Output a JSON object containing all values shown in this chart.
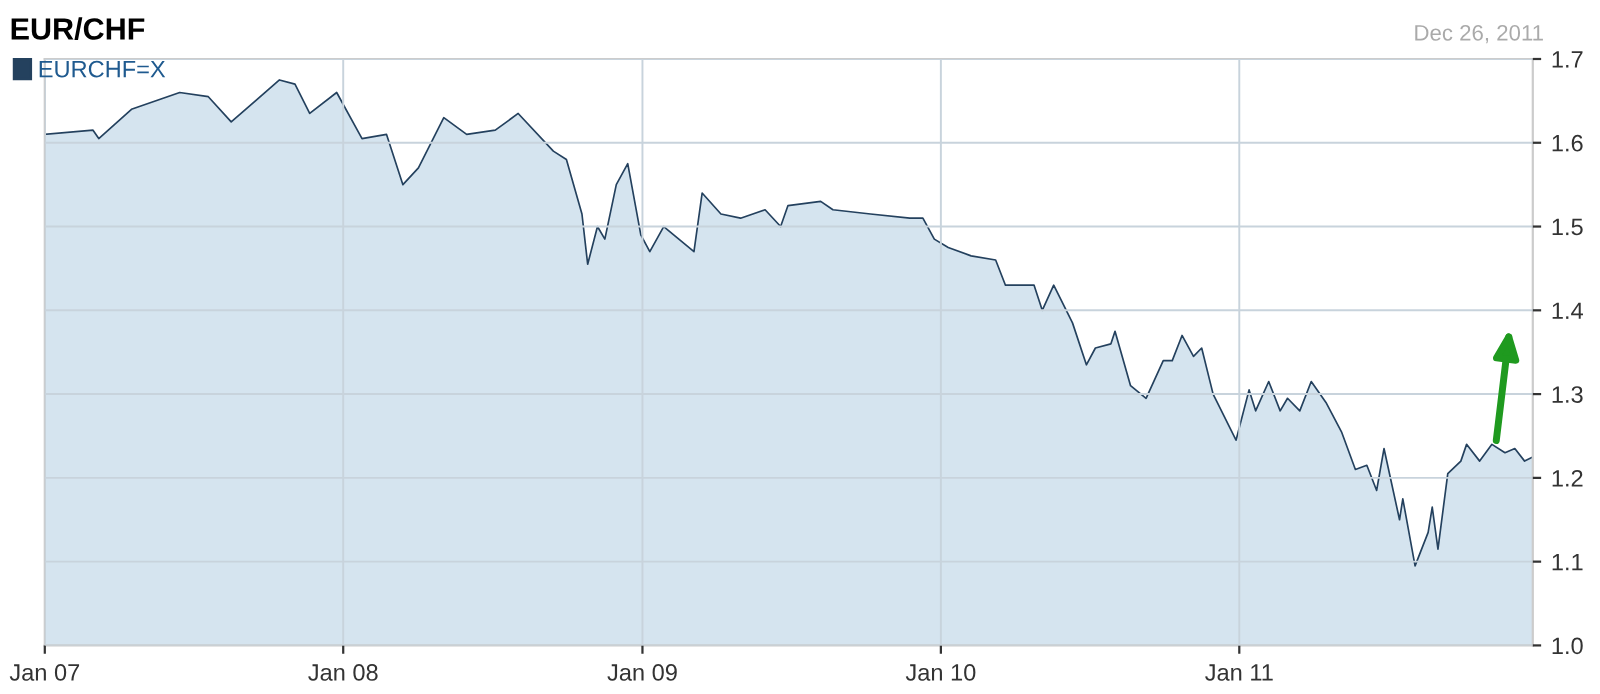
{
  "chart_data": {
    "type": "area",
    "title": "EUR/CHF",
    "annotations": [
      "Dec 26, 2011"
    ],
    "x": [
      "2007-01-01",
      "2007-03-01",
      "2007-03-08",
      "2007-04-17",
      "2007-06-15",
      "2007-07-20",
      "2007-08-17",
      "2007-10-15",
      "2007-11-03",
      "2007-11-21",
      "2007-12-24",
      "2008-01-24",
      "2008-02-23",
      "2008-03-14",
      "2008-04-02",
      "2008-05-03",
      "2008-05-31",
      "2008-07-05",
      "2008-08-02",
      "2008-09-14",
      "2008-09-30",
      "2008-10-19",
      "2008-10-26",
      "2008-11-07",
      "2008-11-16",
      "2008-11-30",
      "2008-12-14",
      "2008-12-30",
      "2009-01-10",
      "2009-01-27",
      "2009-03-05",
      "2009-03-15",
      "2009-04-07",
      "2009-05-01",
      "2009-05-31",
      "2009-06-19",
      "2009-06-28",
      "2009-08-07",
      "2009-08-22",
      "2009-10-07",
      "2009-11-24",
      "2009-12-10",
      "2009-12-24",
      "2010-01-10",
      "2010-02-07",
      "2010-03-09",
      "2010-03-21",
      "2010-04-25",
      "2010-05-05",
      "2010-05-19",
      "2010-06-11",
      "2010-06-28",
      "2010-07-09",
      "2010-07-28",
      "2010-08-02",
      "2010-08-21",
      "2010-09-09",
      "2010-09-30",
      "2010-10-11",
      "2010-10-23",
      "2010-11-06",
      "2010-11-16",
      "2010-11-30",
      "2010-12-28",
      "2011-01-13",
      "2011-01-21",
      "2011-02-06",
      "2011-02-20",
      "2011-03-01",
      "2011-03-16",
      "2011-03-30",
      "2011-04-17",
      "2011-05-06",
      "2011-05-23",
      "2011-06-06",
      "2011-06-18",
      "2011-06-27",
      "2011-07-16",
      "2011-07-20",
      "2011-08-04",
      "2011-08-20",
      "2011-08-25",
      "2011-09-01",
      "2011-09-13",
      "2011-09-29",
      "2011-10-06",
      "2011-10-22",
      "2011-11-06",
      "2011-11-22",
      "2011-12-04",
      "2011-12-16",
      "2011-12-26"
    ],
    "series": [
      {
        "name": "EURCHF=X",
        "color": "#24415e",
        "values": [
          1.61,
          1.615,
          1.605,
          1.64,
          1.66,
          1.655,
          1.625,
          1.675,
          1.67,
          1.635,
          1.66,
          1.605,
          1.61,
          1.55,
          1.57,
          1.63,
          1.61,
          1.615,
          1.635,
          1.59,
          1.58,
          1.515,
          1.455,
          1.5,
          1.485,
          1.55,
          1.575,
          1.49,
          1.47,
          1.5,
          1.47,
          1.54,
          1.515,
          1.51,
          1.52,
          1.5,
          1.525,
          1.53,
          1.52,
          1.515,
          1.51,
          1.51,
          1.485,
          1.475,
          1.465,
          1.46,
          1.43,
          1.43,
          1.4,
          1.43,
          1.385,
          1.335,
          1.355,
          1.36,
          1.375,
          1.31,
          1.295,
          1.34,
          1.34,
          1.37,
          1.345,
          1.355,
          1.3,
          1.245,
          1.305,
          1.28,
          1.315,
          1.28,
          1.295,
          1.28,
          1.315,
          1.29,
          1.255,
          1.21,
          1.215,
          1.185,
          1.235,
          1.15,
          1.175,
          1.095,
          1.135,
          1.165,
          1.115,
          1.205,
          1.22,
          1.24,
          1.22,
          1.24,
          1.23,
          1.235,
          1.22,
          1.225
        ]
      }
    ],
    "xlim": [
      "2007-01-01",
      "2011-12-26"
    ],
    "xticks": [
      {
        "value": "2007-01-01",
        "label": "Jan 07"
      },
      {
        "value": "2008-01-01",
        "label": "Jan 08"
      },
      {
        "value": "2009-01-01",
        "label": "Jan 09"
      },
      {
        "value": "2010-01-01",
        "label": "Jan 10"
      },
      {
        "value": "2011-01-01",
        "label": "Jan 11"
      }
    ],
    "ylim": [
      1.0,
      1.7
    ],
    "yticks": [
      {
        "value": 1.0,
        "label": "1.0"
      },
      1.1,
      1.2,
      1.3,
      1.4,
      1.5,
      1.6,
      1.7
    ],
    "grid": true,
    "legend": "top left"
  }
}
